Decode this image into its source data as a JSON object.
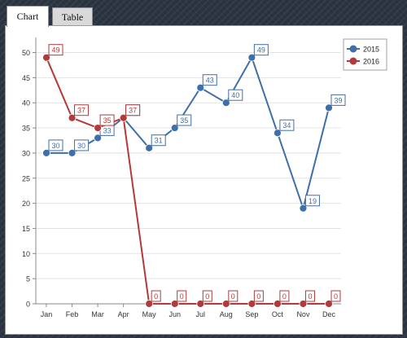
{
  "tabs": [
    {
      "label": "Chart",
      "active": true
    },
    {
      "label": "Table",
      "active": false
    }
  ],
  "colors": {
    "series_2015": "#3f6fa8",
    "series_2016": "#b33a3a"
  },
  "chart_data": {
    "type": "line",
    "categories": [
      "Jan",
      "Feb",
      "Mar",
      "Apr",
      "May",
      "Jun",
      "Jul",
      "Aug",
      "Sep",
      "Oct",
      "Nov",
      "Dec"
    ],
    "series": [
      {
        "name": "2015",
        "values": [
          30,
          30,
          33,
          37,
          31,
          35,
          43,
          40,
          49,
          34,
          19,
          39
        ]
      },
      {
        "name": "2016",
        "values": [
          49,
          37,
          35,
          37,
          0,
          0,
          0,
          0,
          0,
          0,
          0,
          0
        ]
      }
    ],
    "ylim": [
      0,
      53
    ],
    "yticks": [
      0,
      5,
      10,
      15,
      20,
      25,
      30,
      35,
      40,
      45,
      50
    ],
    "grid": true,
    "legend": "top-right",
    "data_labels": true
  }
}
